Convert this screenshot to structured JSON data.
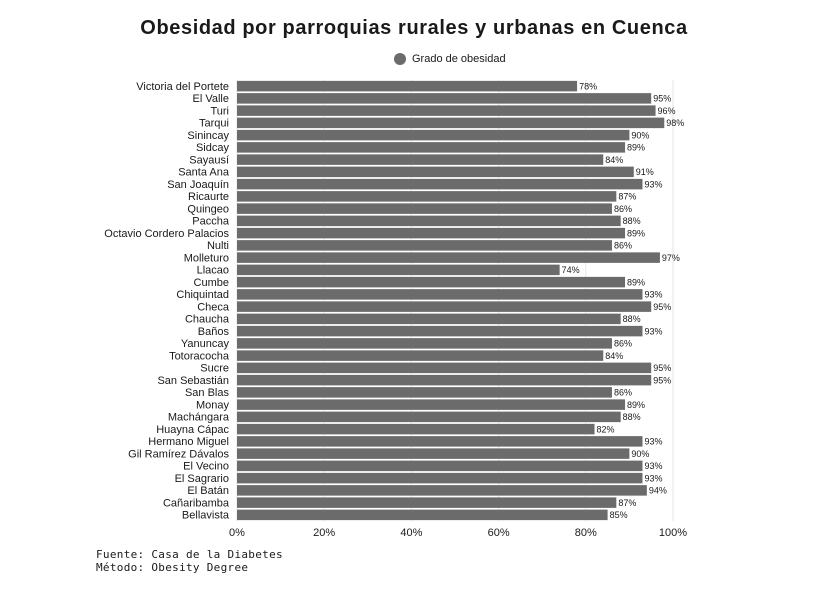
{
  "title": "Obesidad por parroquias rurales y urbanas en Cuenca",
  "legend_label": "Grado de obesidad",
  "footer": {
    "source": "Fuente: Casa de la Diabetes",
    "method": "Método: Obesity Degree"
  },
  "colors": {
    "bar": "#6b6b6b",
    "grid": "#e6e6e6"
  },
  "chart_data": {
    "type": "bar",
    "orientation": "horizontal",
    "title": "Obesidad por parroquias rurales y urbanas en Cuenca",
    "xlabel": "",
    "ylabel": "",
    "xlim": [
      0,
      100
    ],
    "x_ticks": [
      "0%",
      "20%",
      "40%",
      "60%",
      "80%",
      "100%"
    ],
    "grid": true,
    "legend_position": "top",
    "categories": [
      "Victoria del Portete",
      "El Valle",
      "Turi",
      "Tarqui",
      "Sinincay",
      "Sidcay",
      "Sayausí",
      "Santa Ana",
      "San Joaquín",
      "Ricaurte",
      "Quingeo",
      "Paccha",
      "Octavio Cordero Palacios",
      "Nulti",
      "Molleturo",
      "Llacao",
      "Cumbe",
      "Chiquintad",
      "Checa",
      "Chaucha",
      "Baños",
      "Yanuncay",
      "Totoracocha",
      "Sucre",
      "San Sebastián",
      "San Blas",
      "Monay",
      "Machángara",
      "Huayna Cápac",
      "Hermano Miguel",
      "Gil Ramírez Dávalos",
      "El Vecino",
      "El Sagrario",
      "El Batán",
      "Cañaribamba",
      "Bellavista"
    ],
    "series": [
      {
        "name": "Grado de obesidad",
        "values": [
          78,
          95,
          96,
          98,
          90,
          89,
          84,
          91,
          93,
          87,
          86,
          88,
          89,
          86,
          97,
          74,
          89,
          93,
          95,
          88,
          93,
          86,
          84,
          95,
          95,
          86,
          89,
          88,
          82,
          93,
          90,
          93,
          93,
          94,
          87,
          85
        ],
        "labels": [
          "78%",
          "95%",
          "96%",
          "98%",
          "90%",
          "89%",
          "84%",
          "91%",
          "93%",
          "87%",
          "86%",
          "88%",
          "89%",
          "86%",
          "97%",
          "74%",
          "89%",
          "93%",
          "95%",
          "88%",
          "93%",
          "86%",
          "84%",
          "95%",
          "95%",
          "86%",
          "89%",
          "88%",
          "82%",
          "93%",
          "90%",
          "93%",
          "93%",
          "94%",
          "87%",
          "85%"
        ]
      }
    ]
  }
}
